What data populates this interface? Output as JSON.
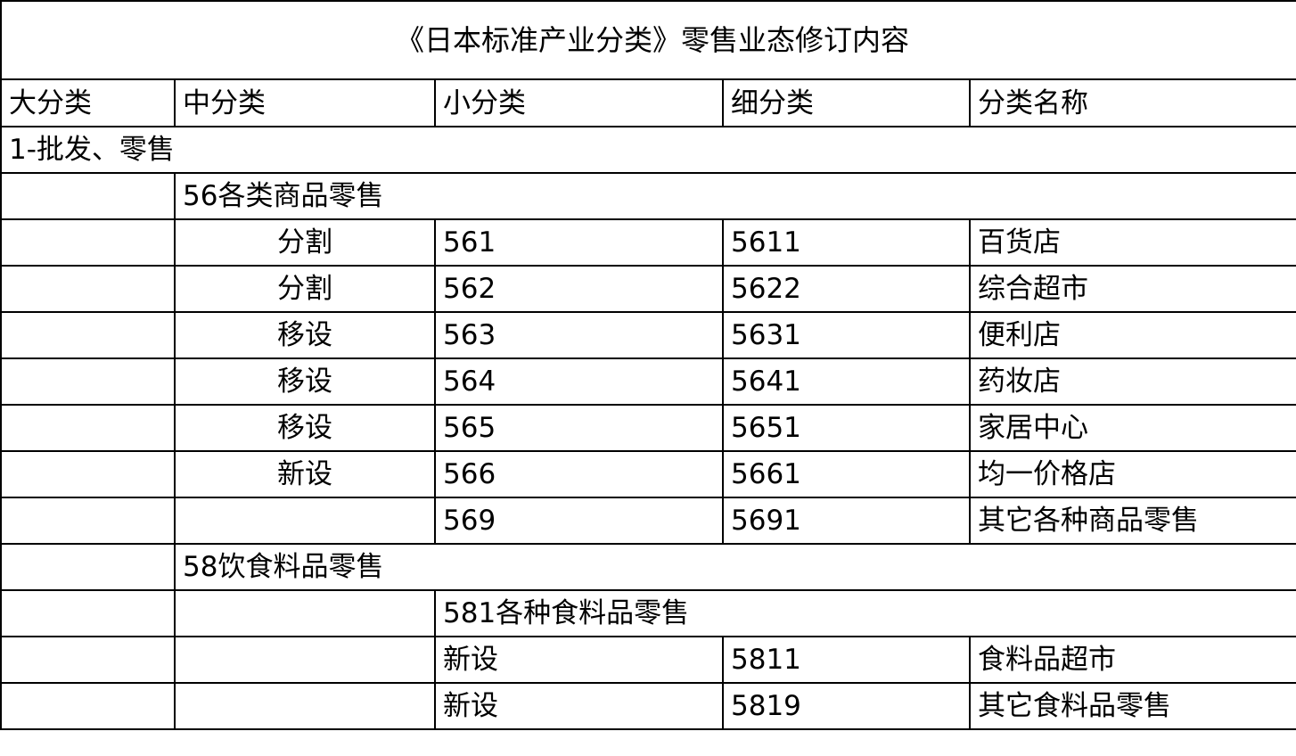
{
  "title": "《日本标准产业分类》零售业态修订内容",
  "headers": [
    "大分类",
    "中分类",
    "小分类",
    "细分类",
    "分类名称"
  ],
  "major": "1-批发、零售",
  "group56": {
    "label": "56各类商品零售",
    "rows": [
      {
        "change": "分割",
        "minor": "561",
        "detail": "5611",
        "name": "百货店"
      },
      {
        "change": "分割",
        "minor": "562",
        "detail": "5622",
        "name": "综合超市"
      },
      {
        "change": "移设",
        "minor": "563",
        "detail": "5631",
        "name": "便利店"
      },
      {
        "change": "移设",
        "minor": "564",
        "detail": "5641",
        "name": "药妆店"
      },
      {
        "change": "移设",
        "minor": "565",
        "detail": "5651",
        "name": "家居中心"
      },
      {
        "change": "新设",
        "minor": "566",
        "detail": "5661",
        "name": "均一价格店"
      },
      {
        "change": "",
        "minor": "569",
        "detail": "5691",
        "name": "其它各种商品零售"
      }
    ]
  },
  "group58": {
    "label": "58饮食料品零售",
    "sub_label": "581各种食料品零售",
    "rows": [
      {
        "change": "新设",
        "detail": "5811",
        "name": "食料品超市"
      },
      {
        "change": "新设",
        "detail": "5819",
        "name": "其它食料品零售"
      }
    ]
  }
}
